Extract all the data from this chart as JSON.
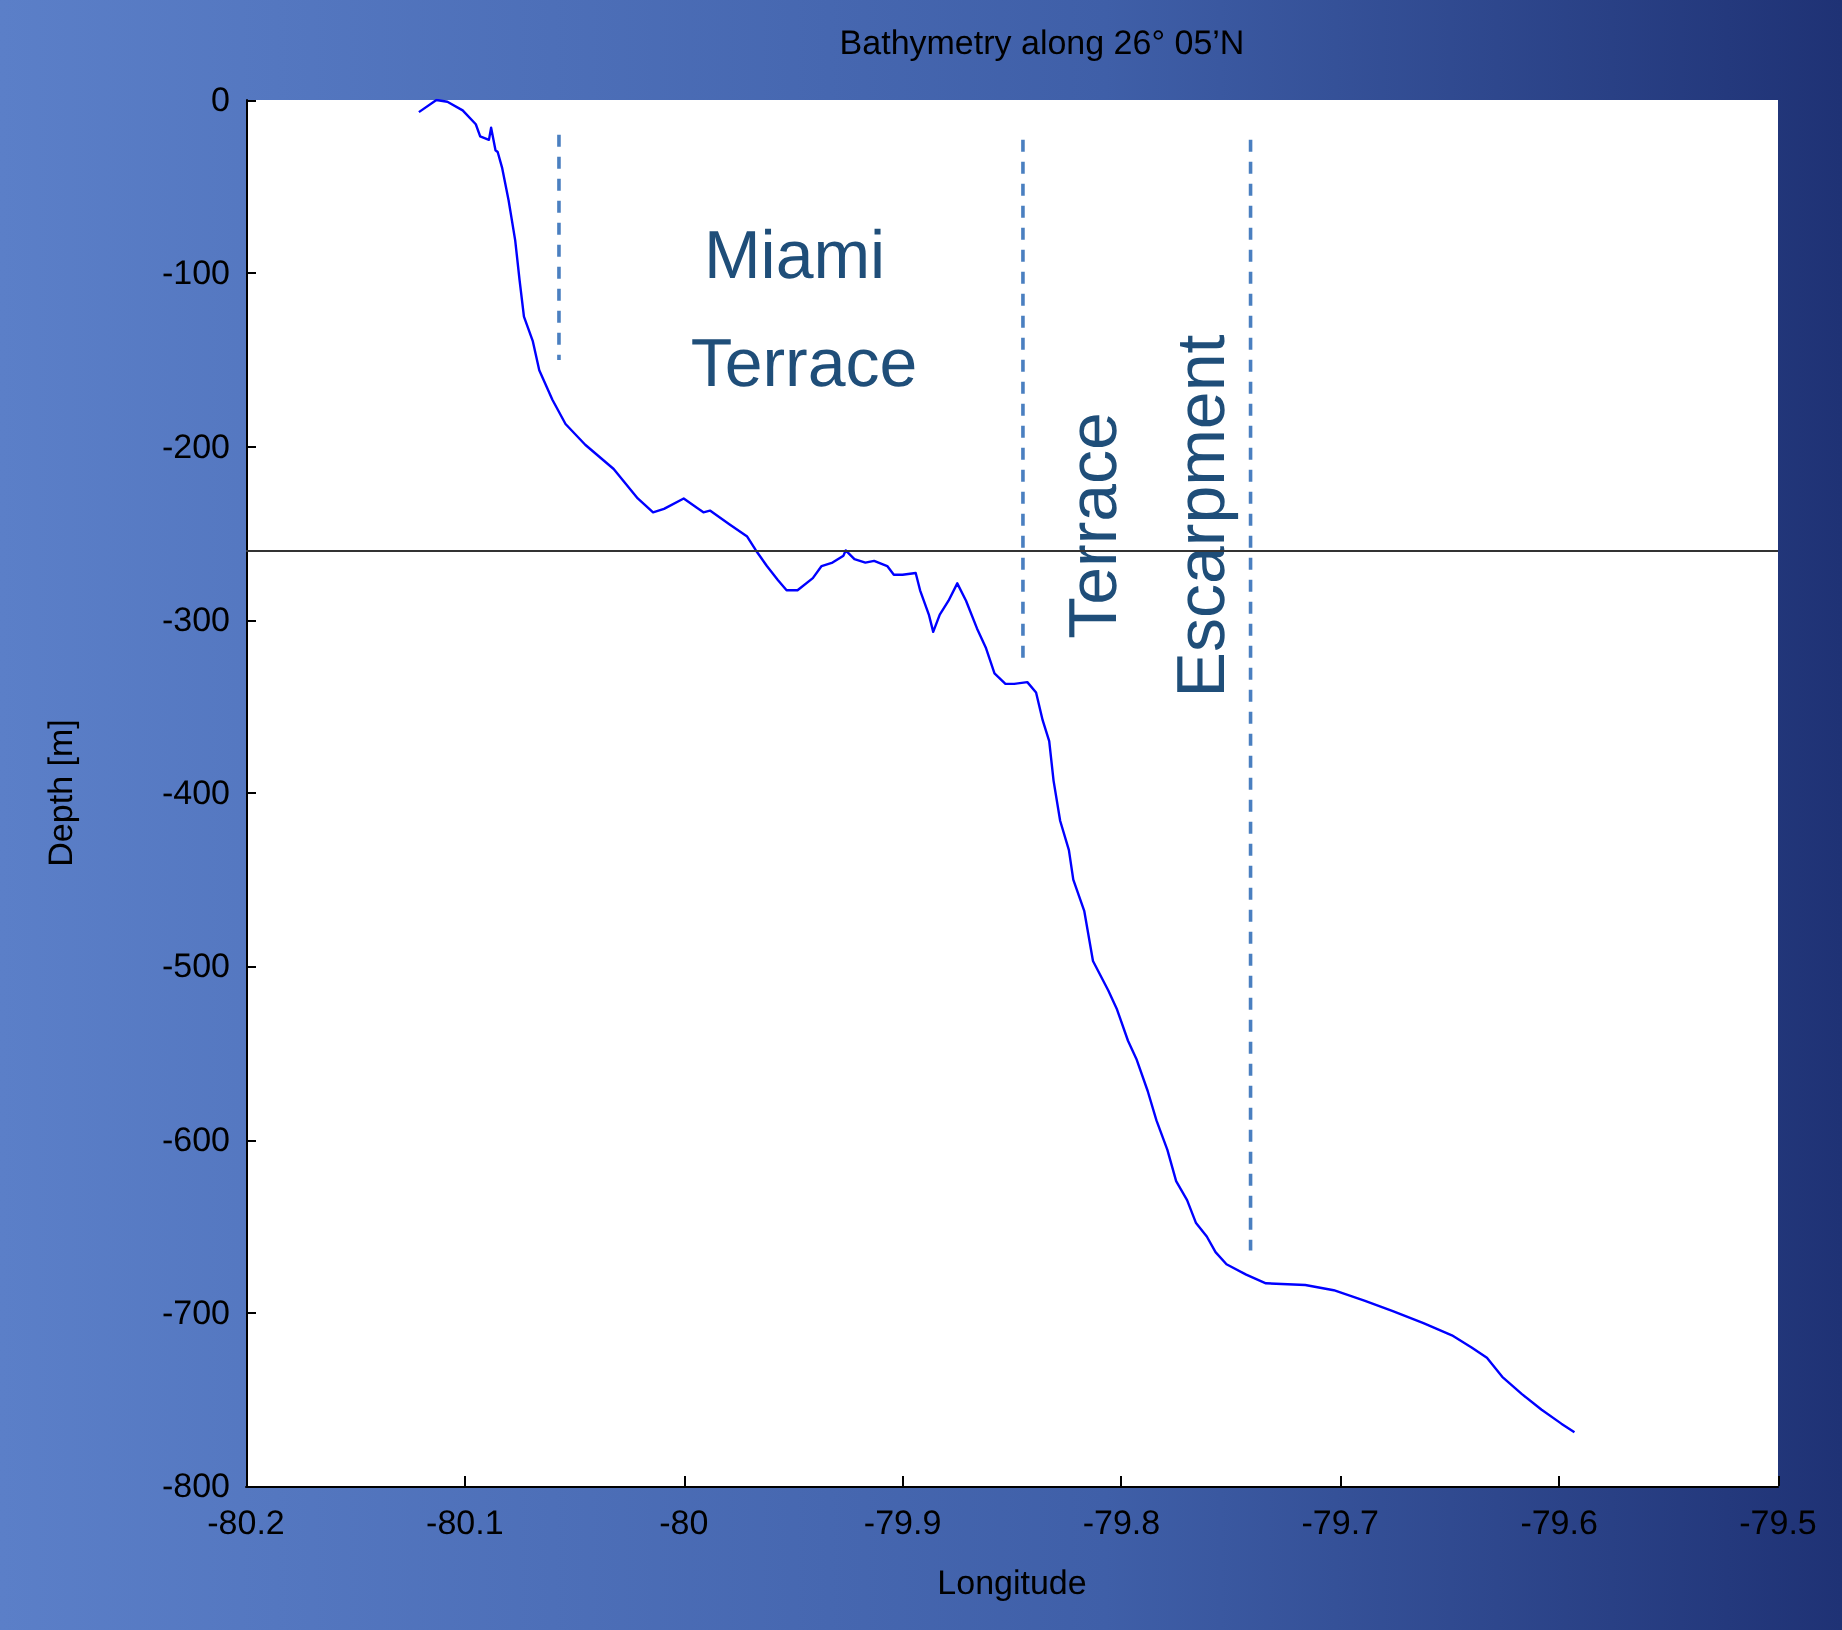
{
  "chart_data": {
    "type": "line",
    "title": "Bathymetry along 26° 05’N",
    "xlabel": "Longitude",
    "ylabel": "Depth [m]",
    "annotations": [
      "Miami Terrace",
      "Terrace Escarpment"
    ],
    "xlim": [
      -80.2,
      -79.5
    ],
    "xticks": [
      -80.2,
      -80.1,
      -80,
      -79.9,
      -79.8,
      -79.7,
      -79.6,
      -79.5
    ],
    "ylim": [
      -800,
      0
    ],
    "yticks": [
      -800,
      -700,
      -600,
      -500,
      -400,
      -300,
      -200,
      -100,
      0
    ],
    "grid": false,
    "marker": "none",
    "ref_lines": [
      {
        "axis": "y",
        "value": -260,
        "color": "#333333",
        "line_style": "solid"
      }
    ],
    "series": [
      {
        "color": "#0000ff",
        "line_style": "solid",
        "x": [
          -80.121,
          -80.113,
          -80.108,
          -80.101,
          -80.095,
          -80.093,
          -80.089,
          -80.088,
          -80.086,
          -80.085,
          -80.083,
          -80.08,
          -80.077,
          -80.075,
          -80.073,
          -80.069,
          -80.066,
          -80.06,
          -80.054,
          -80.045,
          -80.032,
          -80.021,
          -80.014,
          -80.009,
          -80,
          -79.991,
          -79.988,
          -79.979,
          -79.971,
          -79.967,
          -79.962,
          -79.957,
          -79.953,
          -79.948,
          -79.941,
          -79.937,
          -79.932,
          -79.927,
          -79.926,
          -79.922,
          -79.917,
          -79.913,
          -79.907,
          -79.904,
          -79.9,
          -79.894,
          -79.892,
          -79.888,
          -79.886,
          -79.883,
          -79.879,
          -79.875,
          -79.871,
          -79.866,
          -79.862,
          -79.858,
          -79.853,
          -79.849,
          -79.843,
          -79.839,
          -79.836,
          -79.833,
          -79.831,
          -79.828,
          -79.824,
          -79.822,
          -79.817,
          -79.813,
          -79.806,
          -79.802,
          -79.797,
          -79.793,
          -79.788,
          -79.784,
          -79.779,
          -79.775,
          -79.77,
          -79.766,
          -79.761,
          -79.757,
          -79.752,
          -79.743,
          -79.734,
          -79.716,
          -79.703,
          -79.689,
          -79.676,
          -79.662,
          -79.649,
          -79.64,
          -79.633,
          -79.626,
          -79.617,
          -79.608,
          -79.599,
          -79.593
        ],
        "values": [
          -7,
          0,
          -1,
          -6,
          -14,
          -21,
          -23,
          -16,
          -29,
          -30,
          -39,
          -58,
          -81,
          -104,
          -125,
          -139,
          -156,
          -173,
          -187,
          -199,
          -213,
          -230,
          -238,
          -236,
          -230,
          -238,
          -237,
          -245,
          -252,
          -260,
          -269,
          -277,
          -283,
          -283,
          -276,
          -269,
          -267,
          -263,
          -260,
          -265,
          -267,
          -266,
          -269,
          -274,
          -274,
          -273,
          -283,
          -297,
          -307,
          -297,
          -289,
          -279,
          -289,
          -305,
          -316,
          -331,
          -337,
          -337,
          -336,
          -342,
          -358,
          -370,
          -393,
          -416,
          -433,
          -450,
          -468,
          -497,
          -514,
          -525,
          -543,
          -554,
          -572,
          -589,
          -606,
          -624,
          -635,
          -648,
          -656,
          -665,
          -672,
          -678,
          -683,
          -684,
          -687,
          -693,
          -699,
          -706,
          -713,
          -720,
          -726,
          -737,
          -747,
          -756,
          -764,
          -769
        ]
      },
      {
        "color": "#4a7fc0",
        "line_style": "dashed",
        "x": [
          -80.057,
          -80.057
        ],
        "values": [
          -20,
          -150
        ]
      },
      {
        "color": "#4a7fc0",
        "line_style": "dashed",
        "x": [
          -79.845,
          -79.845
        ],
        "values": [
          -23,
          -323
        ]
      },
      {
        "color": "#4a7fc0",
        "line_style": "dashed",
        "x": [
          -79.741,
          -79.741
        ],
        "values": [
          -23,
          -664
        ]
      }
    ]
  }
}
